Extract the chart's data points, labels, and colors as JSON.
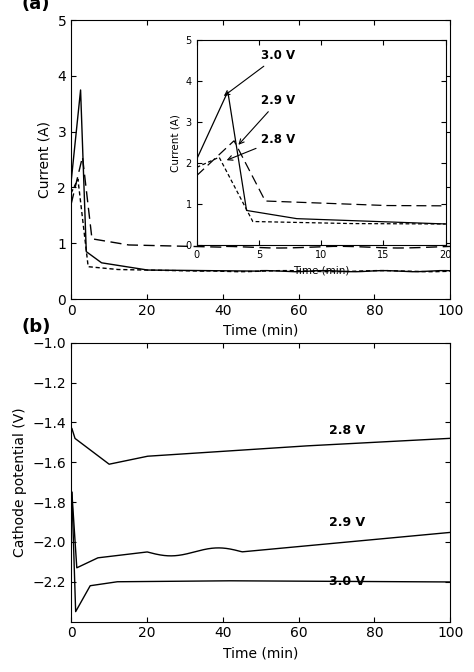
{
  "panel_a": {
    "title": "(a)",
    "xlabel": "Time (min)",
    "ylabel": "Current (A)",
    "xlim": [
      0,
      100
    ],
    "ylim": [
      0,
      5
    ],
    "xticks": [
      0,
      20,
      40,
      60,
      80,
      100
    ],
    "yticks": [
      0,
      1,
      2,
      3,
      4,
      5
    ]
  },
  "panel_b": {
    "title": "(b)",
    "xlabel": "Time (min)",
    "ylabel": "Cathode potential (V)",
    "xlim": [
      0,
      100
    ],
    "ylim": [
      -2.4,
      -1.0
    ],
    "xticks": [
      0,
      20,
      40,
      60,
      80,
      100
    ],
    "yticks": [
      -2.2,
      -2.0,
      -1.8,
      -1.6,
      -1.4,
      -1.2,
      -1.0
    ]
  },
  "inset": {
    "xlim": [
      0,
      20
    ],
    "ylim": [
      0,
      5
    ],
    "xticks": [
      0,
      5,
      10,
      15,
      20
    ],
    "xlabel": "Time (min)",
    "ylabel": "Current (A)"
  }
}
